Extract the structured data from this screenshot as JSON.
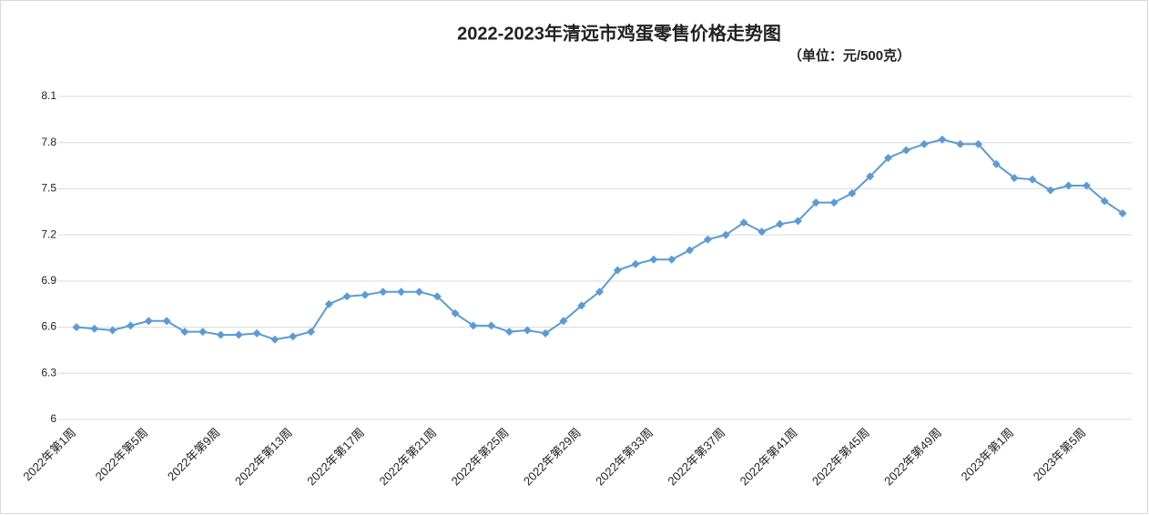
{
  "chart_data": {
    "type": "line",
    "title": "2022-2023年清远市鸡蛋零售价格走势图",
    "subtitle": "（单位：元/500克）",
    "categories": [
      "2022年第1周",
      null,
      null,
      null,
      "2022年第5周",
      null,
      null,
      null,
      "2022年第9周",
      null,
      null,
      null,
      "2022年第13周",
      null,
      null,
      null,
      "2022年第17周",
      null,
      null,
      null,
      "2022年第21周",
      null,
      null,
      null,
      "2022年第25周",
      null,
      null,
      null,
      "2022年第29周",
      null,
      null,
      null,
      "2022年第33周",
      null,
      null,
      null,
      "2022年第37周",
      null,
      null,
      null,
      "2022年第41周",
      null,
      null,
      null,
      "2022年第45周",
      null,
      null,
      null,
      "2022年第49周",
      null,
      null,
      null,
      "2023年第1周",
      null,
      null,
      null,
      "2023年第5周",
      null,
      null
    ],
    "values": [
      6.6,
      6.59,
      6.58,
      6.61,
      6.64,
      6.64,
      6.57,
      6.57,
      6.55,
      6.55,
      6.56,
      6.52,
      6.54,
      6.57,
      6.75,
      6.8,
      6.81,
      6.83,
      6.83,
      6.83,
      6.8,
      6.69,
      6.61,
      6.61,
      6.57,
      6.58,
      6.56,
      6.64,
      6.74,
      6.83,
      6.97,
      7.01,
      7.04,
      7.04,
      7.1,
      7.17,
      7.2,
      7.28,
      7.22,
      7.27,
      7.29,
      7.41,
      7.41,
      7.47,
      7.58,
      7.7,
      7.75,
      7.79,
      7.82,
      7.79,
      7.79,
      7.66,
      7.57,
      7.56,
      7.49,
      7.52,
      7.52,
      7.42,
      7.34
    ],
    "color": "#5b9bd5",
    "ylim": [
      6,
      8.1
    ],
    "yticks": [
      6,
      6.3,
      6.6,
      6.9,
      7.2,
      7.5,
      7.8,
      8.1
    ],
    "grid": true
  }
}
